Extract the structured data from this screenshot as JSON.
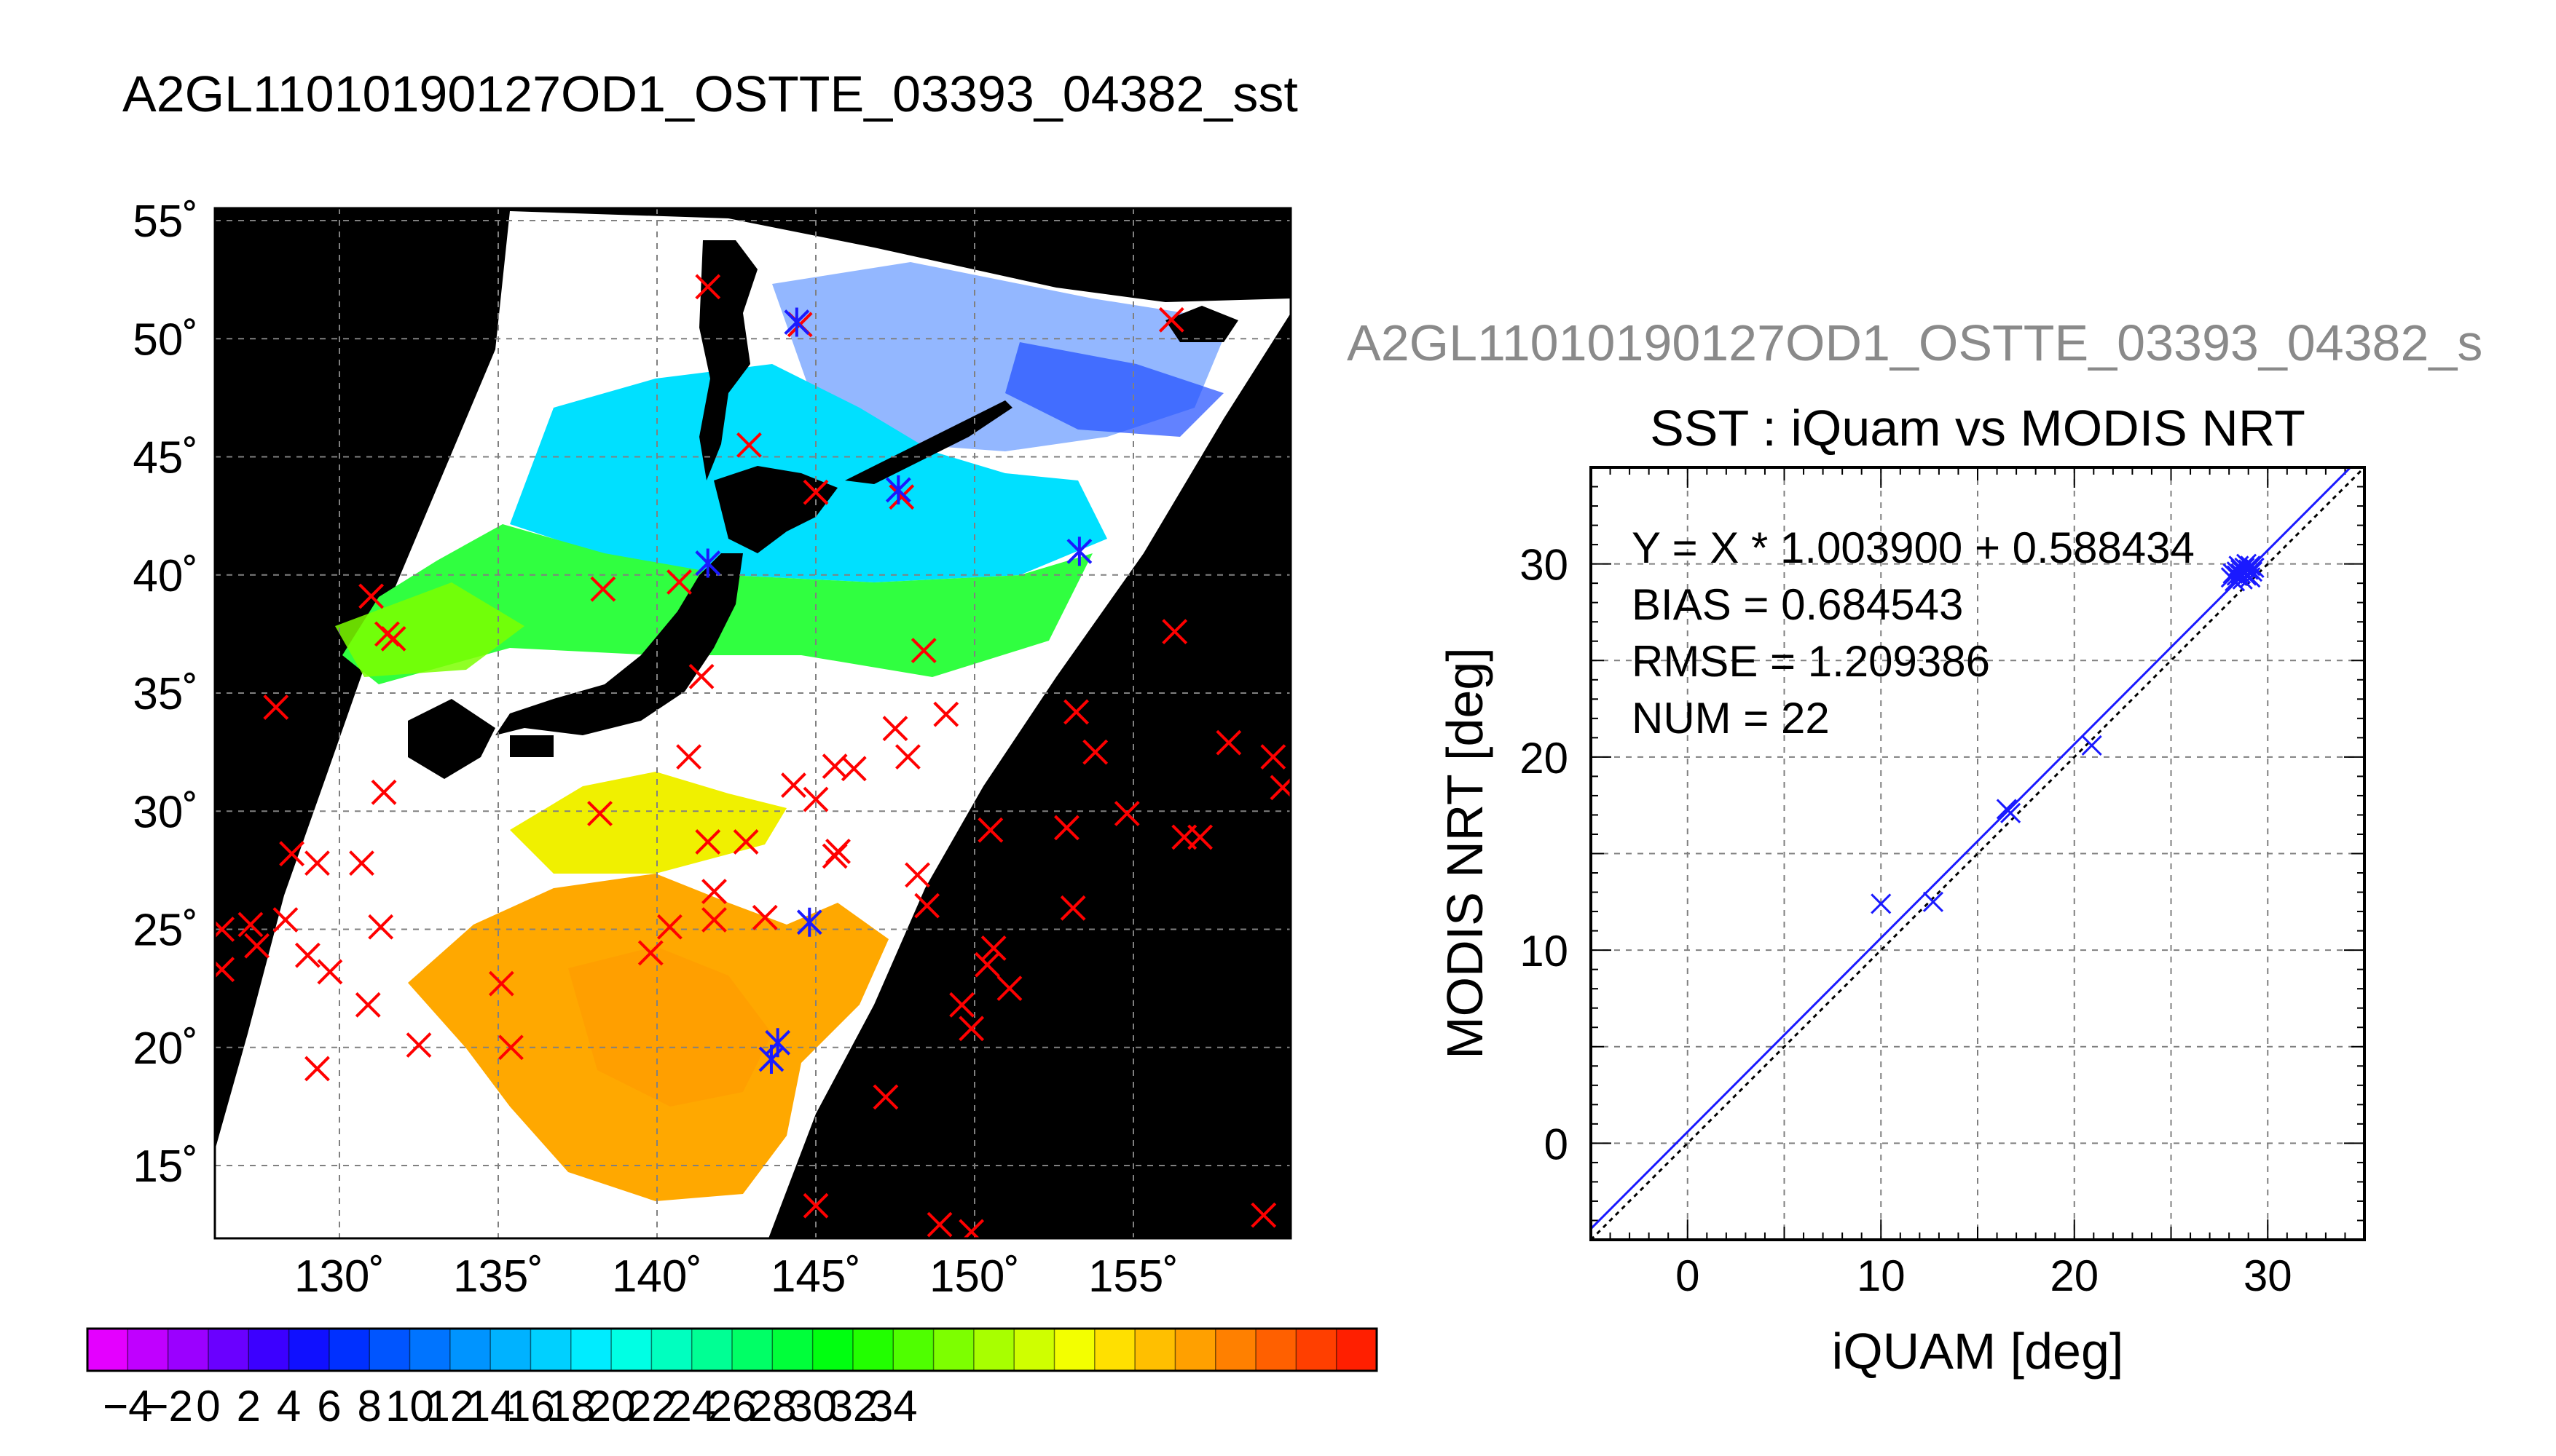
{
  "title": "A2GL11010190127OD1_OSTTE_03393_04382_sst",
  "subtitle": "A2GL11010190127OD1_OSTTE_03393_04382_s",
  "map": {
    "lat_ticks": [
      "55˚",
      "50˚",
      "45˚",
      "40˚",
      "35˚",
      "30˚",
      "25˚",
      "20˚",
      "15˚"
    ],
    "lon_ticks": [
      "130˚",
      "135˚",
      "140˚",
      "145˚",
      "150˚",
      "155˚"
    ],
    "ocean_color": "#ffffff",
    "land_color": "#000000",
    "marker_red": "#ff0000",
    "marker_blue": "#1a1aff",
    "red_markers": [
      [
        128.5,
        28.2
      ],
      [
        126.3,
        25.0
      ],
      [
        126.3,
        23.3
      ],
      [
        127.2,
        25.2
      ],
      [
        127.4,
        24.3
      ],
      [
        128.3,
        25.4
      ],
      [
        129.0,
        23.9
      ],
      [
        129.3,
        27.8
      ],
      [
        129.7,
        23.2
      ],
      [
        129.3,
        19.1
      ],
      [
        130.7,
        27.8
      ],
      [
        130.9,
        21.8
      ],
      [
        131.3,
        25.1
      ],
      [
        131.4,
        30.8
      ],
      [
        131.0,
        39.1
      ],
      [
        131.5,
        37.5
      ],
      [
        131.7,
        37.3
      ],
      [
        128.0,
        34.4
      ],
      [
        132.5,
        20.1
      ],
      [
        135.1,
        22.7
      ],
      [
        135.4,
        20.0
      ],
      [
        138.2,
        29.9
      ],
      [
        138.3,
        39.4
      ],
      [
        139.8,
        24.0
      ],
      [
        140.4,
        25.1
      ],
      [
        140.7,
        39.7
      ],
      [
        141.4,
        35.7
      ],
      [
        141.0,
        32.3
      ],
      [
        141.6,
        28.7
      ],
      [
        141.8,
        26.6
      ],
      [
        141.8,
        25.4
      ],
      [
        142.8,
        28.7
      ],
      [
        143.4,
        25.5
      ],
      [
        142.9,
        45.5
      ],
      [
        144.5,
        50.6
      ],
      [
        145.0,
        43.5
      ],
      [
        147.7,
        43.3
      ],
      [
        144.3,
        31.1
      ],
      [
        145.0,
        30.5
      ],
      [
        145.6,
        31.9
      ],
      [
        146.2,
        31.8
      ],
      [
        145.7,
        28.3
      ],
      [
        145.6,
        28.1
      ],
      [
        147.5,
        33.5
      ],
      [
        147.9,
        32.3
      ],
      [
        148.4,
        36.8
      ],
      [
        149.1,
        34.1
      ],
      [
        148.2,
        27.3
      ],
      [
        148.5,
        26.0
      ],
      [
        149.6,
        21.8
      ],
      [
        149.9,
        20.8
      ],
      [
        150.5,
        29.2
      ],
      [
        150.4,
        23.5
      ],
      [
        150.6,
        24.2
      ],
      [
        151.1,
        22.5
      ],
      [
        152.9,
        29.3
      ],
      [
        153.2,
        34.2
      ],
      [
        153.1,
        25.9
      ],
      [
        153.8,
        32.5
      ],
      [
        154.8,
        29.9
      ],
      [
        156.3,
        37.6
      ],
      [
        156.6,
        28.9
      ],
      [
        157.1,
        28.9
      ],
      [
        158.0,
        32.9
      ],
      [
        159.4,
        32.3
      ],
      [
        159.7,
        31.0
      ],
      [
        156.2,
        50.8
      ],
      [
        141.6,
        52.2
      ],
      [
        147.2,
        17.9
      ],
      [
        145.0,
        13.3
      ],
      [
        148.9,
        12.5
      ],
      [
        149.9,
        12.2
      ],
      [
        159.1,
        12.9
      ]
    ],
    "blue_markers": [
      [
        141.6,
        40.5
      ],
      [
        143.8,
        20.2
      ],
      [
        143.6,
        19.5
      ],
      [
        144.8,
        25.3
      ],
      [
        147.6,
        43.6
      ],
      [
        153.3,
        41.0
      ],
      [
        144.4,
        50.7
      ]
    ],
    "colorbar": {
      "ticks": [
        "−4",
        "−2",
        "0",
        "2",
        "4",
        "6",
        "8",
        "10",
        "12",
        "14",
        "16",
        "18",
        "20",
        "22",
        "24",
        "26",
        "28",
        "30",
        "32",
        "34"
      ],
      "colors": [
        "#e400ff",
        "#c000ff",
        "#9b00ff",
        "#6a00ff",
        "#3c00ff",
        "#1010ff",
        "#0030ff",
        "#0055ff",
        "#0074ff",
        "#0094ff",
        "#00b2ff",
        "#00d0ff",
        "#00ecff",
        "#00ffe4",
        "#00ffbf",
        "#00ff94",
        "#00ff66",
        "#00ff3a",
        "#00ff10",
        "#22ff00",
        "#4fff00",
        "#7dff00",
        "#a8ff00",
        "#cfff00",
        "#f3ff00",
        "#ffe000",
        "#ffbf00",
        "#ffa000",
        "#ff8000",
        "#ff6000",
        "#ff3f00",
        "#ff1f00"
      ]
    }
  },
  "chart_data": {
    "type": "scatter",
    "title": "SST : iQuam vs MODIS NRT",
    "xlabel": "iQUAM [deg]",
    "ylabel": "MODIS NRT [deg]",
    "xlim": [
      -5,
      35
    ],
    "ylim": [
      -5,
      35
    ],
    "x_ticks": [
      "0",
      "10",
      "20",
      "30"
    ],
    "y_ticks": [
      "0",
      "10",
      "20",
      "30"
    ],
    "grid": true,
    "fit": {
      "slope": 1.0039,
      "intercept": 0.588434
    },
    "annotations": [
      "Y = X * 1.003900 + 0.588434",
      "BIAS = 0.684543",
      "RMSE = 1.209386",
      "NUM = 22"
    ],
    "marker_color": "#1a1aff",
    "points": [
      {
        "x": 10.0,
        "y": 12.4
      },
      {
        "x": 12.7,
        "y": 12.5
      },
      {
        "x": 16.5,
        "y": 17.3
      },
      {
        "x": 16.7,
        "y": 17.1
      },
      {
        "x": 20.9,
        "y": 20.6
      },
      {
        "x": 28.1,
        "y": 29.3
      },
      {
        "x": 28.4,
        "y": 29.6
      },
      {
        "x": 28.6,
        "y": 29.5
      },
      {
        "x": 28.8,
        "y": 29.8
      },
      {
        "x": 28.9,
        "y": 29.4
      },
      {
        "x": 29.0,
        "y": 29.7
      },
      {
        "x": 29.1,
        "y": 29.9
      },
      {
        "x": 28.3,
        "y": 29.1
      },
      {
        "x": 28.7,
        "y": 29.2
      },
      {
        "x": 29.2,
        "y": 29.6
      },
      {
        "x": 28.5,
        "y": 29.9
      },
      {
        "x": 28.2,
        "y": 29.5
      },
      {
        "x": 29.3,
        "y": 29.8
      },
      {
        "x": 28.9,
        "y": 30.0
      },
      {
        "x": 28.6,
        "y": 29.7
      },
      {
        "x": 29.1,
        "y": 29.3
      },
      {
        "x": 28.4,
        "y": 29.4
      }
    ]
  }
}
